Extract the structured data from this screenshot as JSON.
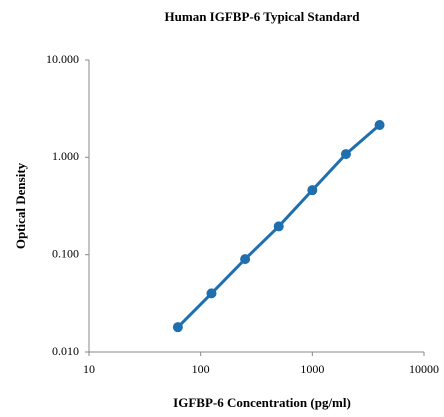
{
  "chart_data": {
    "type": "line",
    "title": "Human IGFBP-6 Typical Standard",
    "xlabel": "IGFBP-6 Concentration (pg/ml)",
    "ylabel": "Optical Density",
    "x": [
      62.5,
      125,
      250,
      500,
      1000,
      2000,
      4000
    ],
    "values": [
      0.018,
      0.04,
      0.09,
      0.195,
      0.46,
      1.08,
      2.15
    ],
    "color": "#1f6fae",
    "xscale": "log",
    "yscale": "log",
    "xlim": [
      10,
      10000
    ],
    "xticks": [
      10,
      100,
      1000,
      10000
    ],
    "ylim": [
      0.01,
      10
    ],
    "yticks": [
      {
        "value": 0.01,
        "label": "0.010"
      },
      {
        "value": 0.1,
        "label": "0.100"
      },
      {
        "value": 1,
        "label": "1.000"
      },
      {
        "value": 10,
        "label": "10.000"
      }
    ],
    "grid": false,
    "markers": true
  }
}
